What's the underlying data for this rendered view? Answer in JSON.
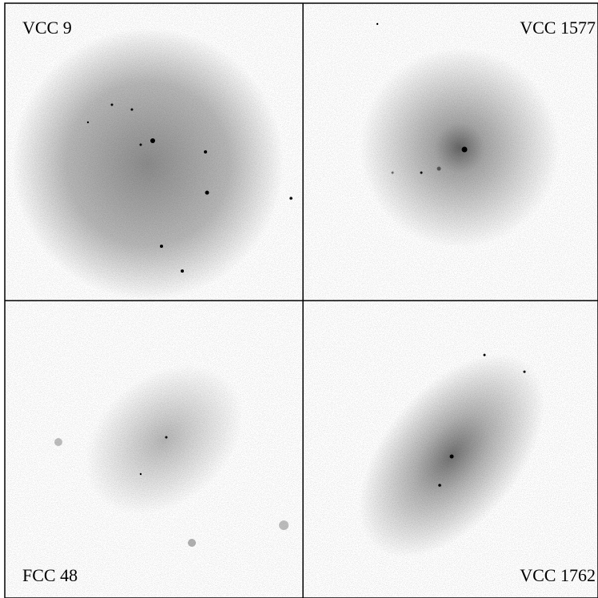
{
  "panels": [
    {
      "label": "VCC 9"
    },
    {
      "label": "VCC 1577"
    },
    {
      "label": "FCC 48"
    },
    {
      "label": "VCC 1762"
    }
  ]
}
